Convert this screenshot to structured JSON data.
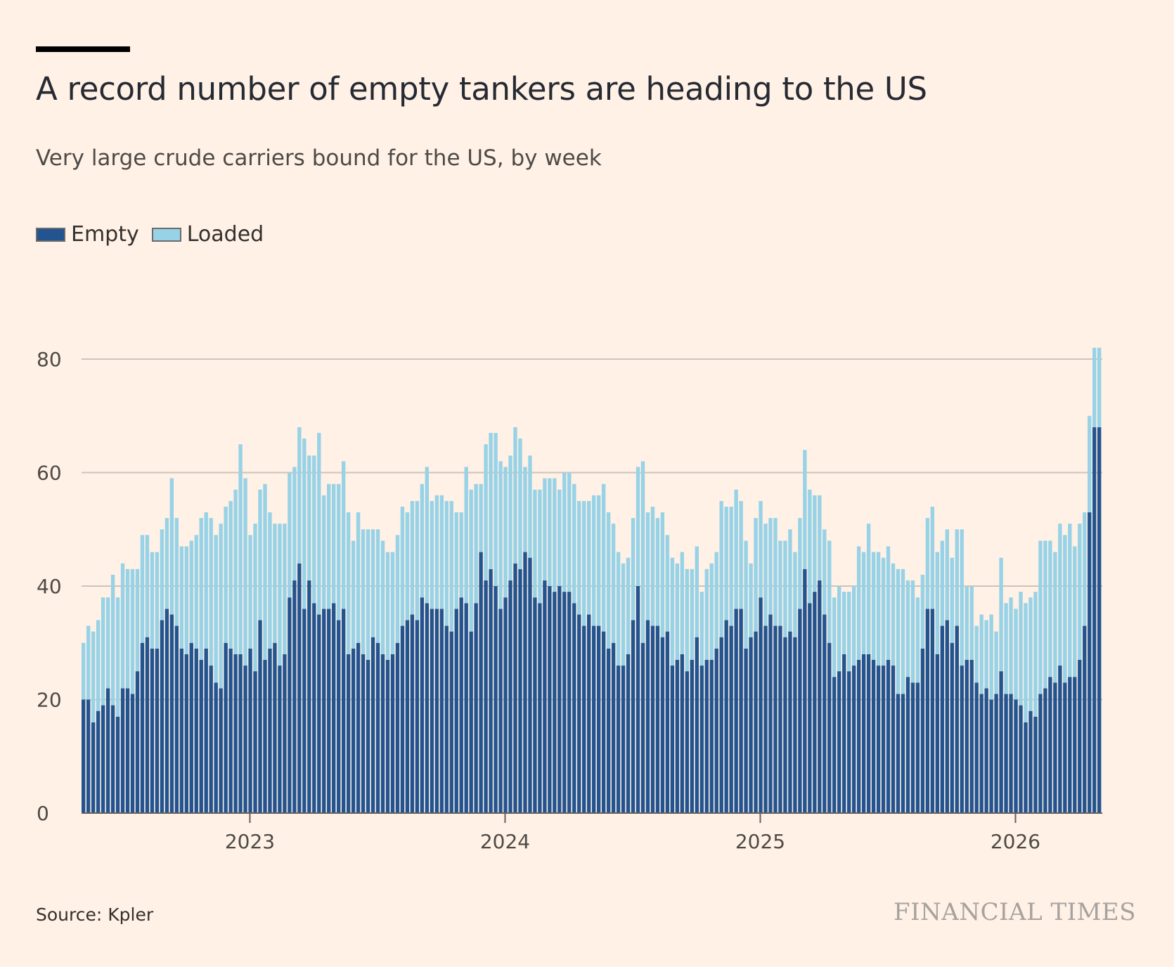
{
  "header": {
    "title": "A record number of empty tankers are heading to the US",
    "subtitle": "Very large crude carriers bound for the US, by week"
  },
  "legend": [
    {
      "label": "Empty",
      "color": "#24548f"
    },
    {
      "label": "Loaded",
      "color": "#98d2e7"
    }
  ],
  "footer": {
    "source": "Source: Kpler",
    "brand": "FINANCIAL TIMES"
  },
  "chart_data": {
    "type": "bar",
    "stacked": true,
    "title": "A record number of empty tankers are heading to the US",
    "subtitle": "Very large crude carriers bound for the US, by week",
    "xlabel": "",
    "ylabel": "",
    "x_start": 2022.35,
    "x_step_years": 0.01923,
    "ylim": [
      0,
      80
    ],
    "yticks": [
      0,
      20,
      40,
      60,
      80
    ],
    "xticks": [
      {
        "value": 2023,
        "label": "2023"
      },
      {
        "value": 2024,
        "label": "2024"
      },
      {
        "value": 2025,
        "label": "2025"
      },
      {
        "value": 2026,
        "label": "2026"
      }
    ],
    "grid": true,
    "legend_position": "top-left",
    "series": [
      {
        "name": "Empty",
        "color": "#24548f",
        "values": [
          20,
          20,
          16,
          18,
          19,
          22,
          19,
          17,
          22,
          22,
          21,
          25,
          30,
          31,
          29,
          29,
          34,
          36,
          35,
          33,
          29,
          28,
          30,
          29,
          27,
          29,
          26,
          23,
          22,
          30,
          29,
          28,
          28,
          26,
          29,
          25,
          34,
          27,
          29,
          30,
          26,
          28,
          38,
          41,
          44,
          36,
          41,
          37,
          35,
          36,
          36,
          37,
          34,
          36,
          28,
          29,
          30,
          28,
          27,
          31,
          30,
          28,
          27,
          28,
          30,
          33,
          34,
          35,
          34,
          38,
          37,
          36,
          36,
          36,
          33,
          32,
          36,
          38,
          37,
          32,
          37,
          46,
          41,
          43,
          40,
          36,
          38,
          41,
          44,
          43,
          46,
          45,
          38,
          37,
          41,
          40,
          39,
          40,
          39,
          39,
          37,
          35,
          33,
          35,
          33,
          33,
          32,
          29,
          30,
          26,
          26,
          28,
          34,
          40,
          30,
          34,
          33,
          33,
          31,
          32,
          26,
          27,
          28,
          25,
          27,
          31,
          26,
          27,
          27,
          29,
          31,
          34,
          33,
          36,
          36,
          29,
          31,
          32,
          38,
          33,
          35,
          33,
          33,
          31,
          32,
          31,
          36,
          43,
          37,
          39,
          41,
          35,
          30,
          24,
          25,
          28,
          25,
          26,
          27,
          28,
          28,
          27,
          26,
          26,
          27,
          26,
          21,
          21,
          24,
          23,
          23,
          29,
          36,
          36,
          28,
          33,
          34,
          30,
          33,
          26,
          27,
          27,
          23,
          21,
          22,
          20,
          21,
          25,
          21,
          21,
          20,
          19,
          16,
          18,
          17,
          21,
          22,
          24,
          23,
          26,
          23,
          24,
          24,
          27,
          33,
          53,
          68,
          68
        ]
      },
      {
        "name": "Loaded",
        "color": "#98d2e7",
        "values": [
          10,
          13,
          16,
          16,
          19,
          16,
          23,
          21,
          22,
          21,
          22,
          18,
          19,
          18,
          17,
          17,
          16,
          16,
          24,
          19,
          18,
          19,
          18,
          20,
          25,
          24,
          26,
          26,
          29,
          24,
          26,
          29,
          37,
          33,
          20,
          26,
          23,
          31,
          24,
          21,
          25,
          23,
          22,
          20,
          24,
          30,
          22,
          26,
          32,
          20,
          22,
          21,
          24,
          26,
          25,
          19,
          23,
          22,
          23,
          19,
          20,
          20,
          19,
          18,
          19,
          21,
          19,
          20,
          21,
          20,
          24,
          19,
          20,
          20,
          22,
          23,
          17,
          15,
          24,
          25,
          21,
          12,
          24,
          24,
          27,
          26,
          23,
          22,
          24,
          23,
          15,
          18,
          19,
          20,
          18,
          19,
          20,
          17,
          21,
          21,
          21,
          20,
          22,
          20,
          23,
          23,
          26,
          24,
          21,
          20,
          18,
          17,
          18,
          21,
          32,
          19,
          21,
          19,
          22,
          17,
          19,
          17,
          18,
          18,
          16,
          16,
          13,
          16,
          17,
          17,
          24,
          20,
          21,
          21,
          19,
          19,
          13,
          20,
          17,
          18,
          17,
          19,
          15,
          17,
          18,
          15,
          16,
          21,
          20,
          17,
          15,
          15,
          18,
          14,
          15,
          11,
          14,
          14,
          20,
          18,
          23,
          19,
          20,
          19,
          20,
          18,
          22,
          22,
          17,
          18,
          15,
          13,
          16,
          18,
          18,
          15,
          16,
          15,
          17,
          24,
          13,
          13,
          10,
          14,
          12,
          15,
          11,
          20,
          16,
          17,
          16,
          20,
          21,
          20,
          22,
          27,
          26,
          24,
          23,
          25,
          26,
          27,
          23,
          24,
          20,
          17,
          14,
          14
        ]
      }
    ]
  }
}
